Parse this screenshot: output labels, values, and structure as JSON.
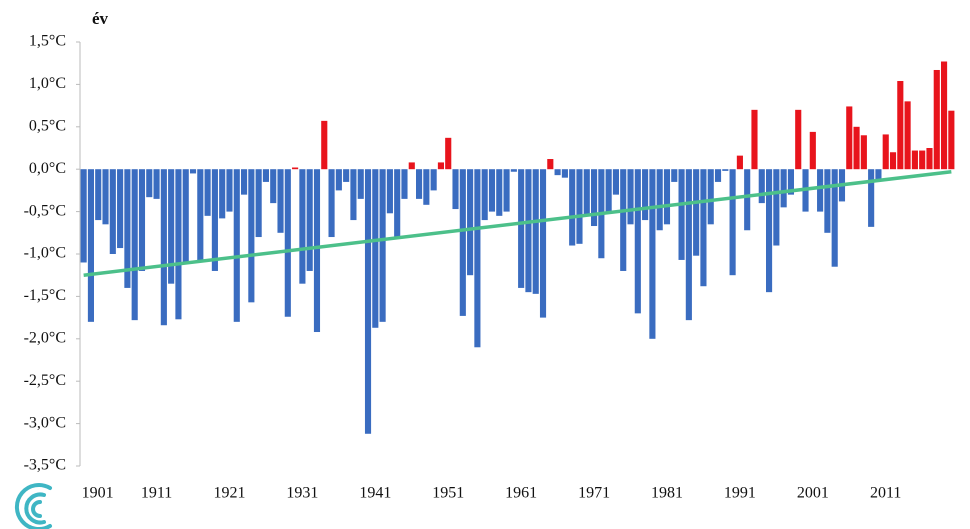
{
  "chart_data": {
    "type": "bar",
    "title": "év",
    "x": [
      1901,
      1902,
      1903,
      1904,
      1905,
      1906,
      1907,
      1908,
      1909,
      1910,
      1911,
      1912,
      1913,
      1914,
      1915,
      1916,
      1917,
      1918,
      1919,
      1920,
      1921,
      1922,
      1923,
      1924,
      1925,
      1926,
      1927,
      1928,
      1929,
      1930,
      1931,
      1932,
      1933,
      1934,
      1935,
      1936,
      1937,
      1938,
      1939,
      1940,
      1941,
      1942,
      1943,
      1944,
      1945,
      1946,
      1947,
      1948,
      1949,
      1950,
      1951,
      1952,
      1953,
      1954,
      1955,
      1956,
      1957,
      1958,
      1959,
      1960,
      1961,
      1962,
      1963,
      1964,
      1965,
      1966,
      1967,
      1968,
      1969,
      1970,
      1971,
      1972,
      1973,
      1974,
      1975,
      1976,
      1977,
      1978,
      1979,
      1980,
      1981,
      1982,
      1983,
      1984,
      1985,
      1986,
      1987,
      1988,
      1989,
      1990,
      1991,
      1992,
      1993,
      1994,
      1995,
      1996,
      1997,
      1998,
      1999,
      2000,
      2001,
      2002,
      2003,
      2004,
      2005,
      2006,
      2007,
      2008,
      2009,
      2010,
      2011,
      2012,
      2013,
      2014,
      2015,
      2016,
      2017,
      2018,
      2019,
      2020
    ],
    "values": [
      -1.1,
      -1.8,
      -0.6,
      -0.65,
      -1.0,
      -0.93,
      -1.4,
      -1.78,
      -1.2,
      -0.33,
      -0.35,
      -1.84,
      -1.35,
      -1.77,
      -1.1,
      -0.05,
      -1.1,
      -0.55,
      -1.2,
      -0.58,
      -0.5,
      -1.8,
      -0.3,
      -1.57,
      -0.8,
      -0.15,
      -0.4,
      -0.75,
      -1.74,
      0.02,
      -1.35,
      -1.2,
      -1.92,
      0.57,
      -0.8,
      -0.25,
      -0.15,
      -0.6,
      -0.35,
      -3.12,
      -1.87,
      -1.8,
      -0.52,
      -0.8,
      -0.35,
      0.08,
      -0.35,
      -0.42,
      -0.25,
      0.08,
      0.37,
      -0.47,
      -1.73,
      -1.25,
      -2.1,
      -0.6,
      -0.5,
      -0.55,
      -0.5,
      -0.03,
      -1.4,
      -1.45,
      -1.47,
      -1.75,
      0.12,
      -0.07,
      -0.1,
      -0.9,
      -0.88,
      -0.55,
      -0.67,
      -1.05,
      -0.5,
      -0.3,
      -1.2,
      -0.65,
      -1.7,
      -0.6,
      -2.0,
      -0.72,
      -0.65,
      -0.15,
      -1.07,
      -1.78,
      -1.02,
      -1.38,
      -0.65,
      -0.15,
      -0.02,
      -1.25,
      0.16,
      -0.72,
      0.7,
      -0.4,
      -1.45,
      -0.9,
      -0.45,
      -0.3,
      0.7,
      -0.5,
      0.44,
      -0.5,
      -0.75,
      -1.15,
      -0.38,
      0.74,
      0.5,
      0.4,
      -0.68,
      -0.12,
      0.41,
      0.2,
      1.04,
      0.8,
      0.22,
      0.22,
      0.25,
      1.17,
      1.27,
      0.69
    ],
    "positive_color": "#e8141c",
    "negative_color": "#3a6cc0",
    "trend": {
      "x": [
        1901,
        2020
      ],
      "values": [
        -1.25,
        -0.03
      ],
      "color": "#4cc08a"
    },
    "xlim": [
      1900.5,
      2020.5
    ],
    "xticks": [
      1901,
      1911,
      1921,
      1931,
      1941,
      1951,
      1961,
      1971,
      1981,
      1991,
      2001,
      2011
    ],
    "ylim": [
      -3.5,
      1.5
    ],
    "yticks": [
      {
        "value": 1.5,
        "label": "1,5°C"
      },
      {
        "value": 1.0,
        "label": "1,0°C"
      },
      {
        "value": 0.5,
        "label": "0,5°C"
      },
      {
        "value": 0,
        "label": "0,0°C"
      },
      {
        "value": -0.5,
        "label": "-0,5°C"
      },
      {
        "value": -1.0,
        "label": "-1,0°C"
      },
      {
        "value": -1.5,
        "label": "-1,5°C"
      },
      {
        "value": -2.0,
        "label": "-2,0°C"
      },
      {
        "value": -2.5,
        "label": "-2,5°C"
      },
      {
        "value": -3.0,
        "label": "-3,0°C"
      },
      {
        "value": -3.5,
        "label": "-3,5°C"
      }
    ],
    "grid": false
  }
}
